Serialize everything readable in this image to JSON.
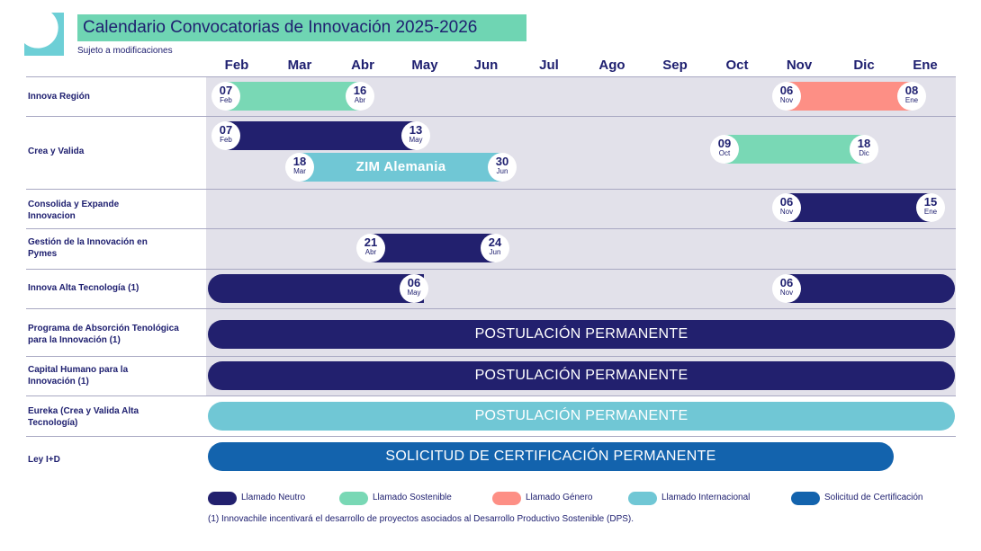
{
  "title": "Calendario Convocatorias de Innovación 2025-2026",
  "subtitle": "Sujeto a modificaciones",
  "months": [
    "Feb",
    "Mar",
    "Abr",
    "May",
    "Jun",
    "Jul",
    "Ago",
    "Sep",
    "Oct",
    "Nov",
    "Dic",
    "Ene"
  ],
  "rows": [
    "Innova Región",
    "Crea y Valida",
    "Consolida y Expande Innovacion",
    "Gestión de la Innovación en Pymes",
    "Innova Alta Tecnología (1)",
    "Programa de Absorción Tenológica para la Innovación (1)",
    "Capital Humano para la Innovación (1)",
    "Eureka (Crea y Valida Alta Tecnología)",
    "Ley I+D"
  ],
  "bars": {
    "zim_label": "ZIM Alemania",
    "permanent_label": "POSTULACIÓN PERMANENTE",
    "cert_label": "SOLICITUD DE CERTIFICACIÓN PERMANENTE"
  },
  "dates": {
    "innova_region_start": {
      "d": "07",
      "m": "Feb"
    },
    "innova_region_end": {
      "d": "16",
      "m": "Abr"
    },
    "innova_region_g_start": {
      "d": "06",
      "m": "Nov"
    },
    "innova_region_g_end": {
      "d": "08",
      "m": "Ene"
    },
    "crea_start": {
      "d": "07",
      "m": "Feb"
    },
    "crea_end": {
      "d": "13",
      "m": "May"
    },
    "crea_s_start": {
      "d": "09",
      "m": "Oct"
    },
    "crea_s_end": {
      "d": "18",
      "m": "Dic"
    },
    "zim_start": {
      "d": "18",
      "m": "Mar"
    },
    "zim_end": {
      "d": "30",
      "m": "Jun"
    },
    "consolida_start": {
      "d": "06",
      "m": "Nov"
    },
    "consolida_end": {
      "d": "15",
      "m": "Ene"
    },
    "gestion_start": {
      "d": "21",
      "m": "Abr"
    },
    "gestion_end": {
      "d": "24",
      "m": "Jun"
    },
    "alta_end": {
      "d": "06",
      "m": "May"
    },
    "alta_start2": {
      "d": "06",
      "m": "Nov"
    }
  },
  "legend": [
    {
      "label": "Llamado Neutro",
      "color": "#22206e"
    },
    {
      "label": "Llamado Sostenible",
      "color": "#79d8b5"
    },
    {
      "label": "Llamado Género",
      "color": "#fd8f85"
    },
    {
      "label": "Llamado Internacional",
      "color": "#70c7d5"
    },
    {
      "label": "Solicitud de Certificación",
      "color": "#1363ad"
    }
  ],
  "footnote": "(1) Innovachile incentivará el desarrollo de proyectos asociados al Desarrollo Productivo Sostenible (DPS)."
}
